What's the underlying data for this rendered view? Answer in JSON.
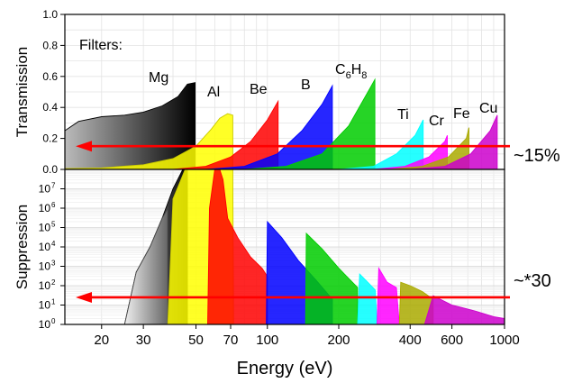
{
  "chart_data": [
    {
      "type": "area",
      "panel": "top",
      "ylabel": "Transmission",
      "ylim": [
        0,
        1.0
      ],
      "yticks": [
        "0.0",
        "0.2",
        "0.4",
        "0.6",
        "0.8",
        "1.0"
      ],
      "xscale": "log",
      "xlim": [
        14,
        1000
      ],
      "legend_text": "Filters:",
      "series": [
        {
          "name": "Mg",
          "color": "#000000",
          "x": [
            14,
            16,
            20,
            25,
            30,
            36,
            42,
            46,
            49.6
          ],
          "y": [
            0.25,
            0.31,
            0.34,
            0.35,
            0.37,
            0.41,
            0.47,
            0.55,
            0.56
          ]
        },
        {
          "name": "Al",
          "color": "#ffff00",
          "x": [
            14,
            20,
            30,
            40,
            50,
            58,
            63,
            68,
            71.5
          ],
          "y": [
            0.005,
            0.01,
            0.03,
            0.07,
            0.15,
            0.26,
            0.33,
            0.36,
            0.35
          ]
        },
        {
          "name": "Be",
          "color": "#ff0000",
          "x": [
            40,
            55,
            70,
            85,
            100,
            111
          ],
          "y": [
            0.0,
            0.02,
            0.08,
            0.18,
            0.32,
            0.44
          ]
        },
        {
          "name": "B",
          "color": "#0000ff",
          "x": [
            55,
            80,
            110,
            140,
            170,
            188
          ],
          "y": [
            0.0,
            0.02,
            0.1,
            0.25,
            0.42,
            0.54
          ]
        },
        {
          "name": "C6H8",
          "color": "#00cc00",
          "x": [
            80,
            120,
            170,
            220,
            270,
            284
          ],
          "y": [
            0.0,
            0.02,
            0.1,
            0.28,
            0.52,
            0.58
          ]
        },
        {
          "name": "Ti",
          "color": "#00ffff",
          "x": [
            200,
            280,
            350,
            420,
            454
          ],
          "y": [
            0.0,
            0.02,
            0.1,
            0.22,
            0.32
          ]
        },
        {
          "name": "Cr",
          "color": "#ff00ff",
          "x": [
            280,
            380,
            480,
            560,
            574
          ],
          "y": [
            0.0,
            0.02,
            0.08,
            0.18,
            0.22
          ]
        },
        {
          "name": "Fe",
          "color": "#aaaa00",
          "x": [
            330,
            450,
            580,
            690,
            708
          ],
          "y": [
            0.0,
            0.02,
            0.08,
            0.2,
            0.27
          ]
        },
        {
          "name": "Cu",
          "color": "#cc00cc",
          "x": [
            400,
            560,
            720,
            870,
            932
          ],
          "y": [
            0.0,
            0.02,
            0.1,
            0.25,
            0.35
          ]
        }
      ],
      "annotations": {
        "labels": {
          "Mg": "Mg",
          "Al": "Al",
          "Be": "Be",
          "B": "B",
          "C": "C",
          "C_sub": "6",
          "H": "H",
          "H_sub": "8",
          "Ti": "Ti",
          "Cr": "Cr",
          "Fe": "Fe",
          "Cu": "Cu"
        },
        "arrow": {
          "level": 0.15,
          "text": "~15%",
          "color": "#ff0000"
        }
      }
    },
    {
      "type": "area",
      "panel": "bottom",
      "ylabel": "Suppression",
      "yscale": "log",
      "ylim": [
        1,
        100000000
      ],
      "ytick_bases": [
        "10",
        "10",
        "10",
        "10",
        "10",
        "10",
        "10",
        "10"
      ],
      "ytick_exps": [
        "0",
        "1",
        "2",
        "3",
        "4",
        "5",
        "6",
        "7"
      ],
      "xscale": "log",
      "xlim": [
        14,
        1000
      ],
      "xticks": [
        "20",
        "30",
        "50",
        "70",
        "100",
        "200",
        "400",
        "600",
        "1000"
      ],
      "xtick_values": [
        20,
        30,
        50,
        70,
        100,
        200,
        400,
        600,
        1000
      ],
      "xlabel": "Energy (eV)",
      "series": [
        {
          "name": "Mg",
          "color": "#000000",
          "x": [
            25,
            28,
            32,
            36,
            40,
            44,
            46
          ],
          "y": [
            1,
            500,
            10000,
            300000,
            10000000,
            100000000,
            100000000
          ]
        },
        {
          "name": "Mg-gray",
          "color": "#aaaaaa",
          "x": [
            25,
            28,
            32,
            36,
            38
          ],
          "y": [
            1,
            500,
            10000,
            300000,
            1000000
          ]
        },
        {
          "name": "Al",
          "color": "#ffff00",
          "x": [
            38,
            40,
            45,
            55,
            65,
            71.5,
            72
          ],
          "y": [
            1,
            3000000,
            100000000,
            100000000,
            100000000,
            100000000,
            1
          ]
        },
        {
          "name": "Be",
          "color": "#ff0000",
          "x": [
            56,
            57,
            60,
            63,
            65,
            68,
            75,
            85,
            95,
            100
          ],
          "y": [
            1,
            1000000,
            100000000,
            100000000,
            30000000,
            300000,
            30000,
            3000,
            800,
            300
          ]
        },
        {
          "name": "B",
          "color": "#0000ff",
          "x": [
            99,
            100,
            115,
            135,
            160,
            188
          ],
          "y": [
            1,
            200000,
            30000,
            2000,
            200,
            20
          ]
        },
        {
          "name": "C6H8",
          "color": "#00cc00",
          "x": [
            145,
            146,
            170,
            200,
            240,
            240
          ],
          "y": [
            1,
            50000,
            8000,
            800,
            80,
            1
          ]
        },
        {
          "name": "Ti",
          "color": "#00ffff",
          "x": [
            240,
            245,
            265,
            285,
            290
          ],
          "y": [
            1,
            400,
            150,
            60,
            1
          ]
        },
        {
          "name": "Cr",
          "color": "#ff00ff",
          "x": [
            290,
            295,
            320,
            350,
            360
          ],
          "y": [
            1,
            800,
            150,
            80,
            1
          ]
        },
        {
          "name": "Fe",
          "color": "#aaaa00",
          "x": [
            360,
            365,
            400,
            450,
            500
          ],
          "y": [
            1,
            150,
            100,
            50,
            20
          ]
        },
        {
          "name": "Cu",
          "color": "#cc00cc",
          "x": [
            460,
            500,
            600,
            750,
            900,
            1000
          ],
          "y": [
            1,
            30,
            10,
            5,
            2.5,
            2
          ]
        }
      ],
      "annotations": {
        "arrow": {
          "level": 25,
          "text": "~*30",
          "color": "#ff0000"
        }
      }
    }
  ]
}
